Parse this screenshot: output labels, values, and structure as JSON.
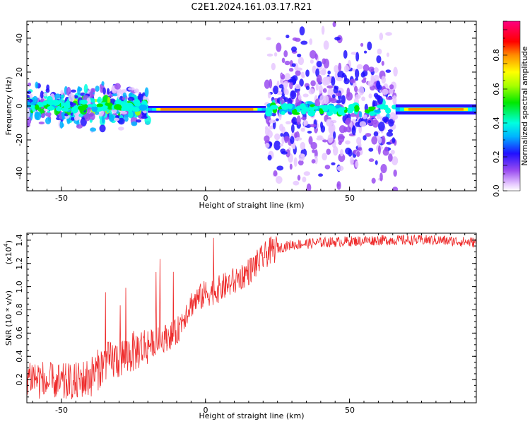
{
  "title": "C2E1.2024.161.03.17.R21",
  "chart_data": [
    {
      "type": "heatmap",
      "xlabel": "Height of straight line (km)",
      "ylabel": "Frequency (Hz)",
      "xlim": [
        -62,
        94
      ],
      "ylim": [
        -50,
        50
      ],
      "xticks": [
        -50,
        0,
        50
      ],
      "yticks": [
        -40,
        -20,
        0,
        20,
        40
      ],
      "colorbar": {
        "label": "Normalized spectral amplitude",
        "range": [
          0,
          1
        ],
        "ticks": [
          "0.0",
          "0.2",
          "0.4",
          "0.6",
          "0.8"
        ]
      },
      "regions": [
        {
          "x_range": [
            -62,
            -20
          ],
          "freq_center": 0,
          "freq_spread": 10,
          "amplitude": 0.35,
          "texture": "blobs"
        },
        {
          "x_range": [
            -20,
            21
          ],
          "freq_center": -2,
          "freq_spread": 1,
          "amplitude": 0.9,
          "texture": "line"
        },
        {
          "x_range": [
            21,
            66
          ],
          "freq_center": -2,
          "freq_spread": 35,
          "amplitude": 0.25,
          "texture": "scattered"
        },
        {
          "x_range": [
            66,
            94
          ],
          "freq_center": -2,
          "freq_spread": 1.5,
          "amplitude": 0.9,
          "texture": "line"
        }
      ]
    },
    {
      "type": "line",
      "xlabel": "Height of straight line (km)",
      "ylabel": "SNR (10 * v/v)",
      "y_multiplier": "(x10",
      "y_multiplier_exp": "4",
      "xlim": [
        -62,
        94
      ],
      "ylim": [
        0,
        1.46
      ],
      "xticks": [
        -50,
        0,
        50
      ],
      "yticks": [
        "0.2",
        "0.4",
        "0.6",
        "0.8",
        "1.0",
        "1.2",
        "1.4"
      ],
      "color": "#ee2b2b",
      "series": [
        {
          "x": [
            -62,
            -55,
            -50,
            -45,
            -40,
            -35,
            -30,
            -25,
            -20,
            -15,
            -10,
            -8,
            -5,
            0,
            5,
            10,
            15,
            18,
            22,
            25,
            30,
            40,
            50,
            60,
            70,
            80,
            94
          ],
          "y": [
            0.25,
            0.17,
            0.16,
            0.17,
            0.22,
            0.34,
            0.38,
            0.44,
            0.5,
            0.55,
            0.6,
            0.72,
            0.85,
            0.94,
            0.98,
            1.05,
            1.13,
            1.2,
            1.3,
            1.33,
            1.36,
            1.38,
            1.39,
            1.4,
            1.4,
            1.4,
            1.38
          ]
        }
      ]
    }
  ]
}
